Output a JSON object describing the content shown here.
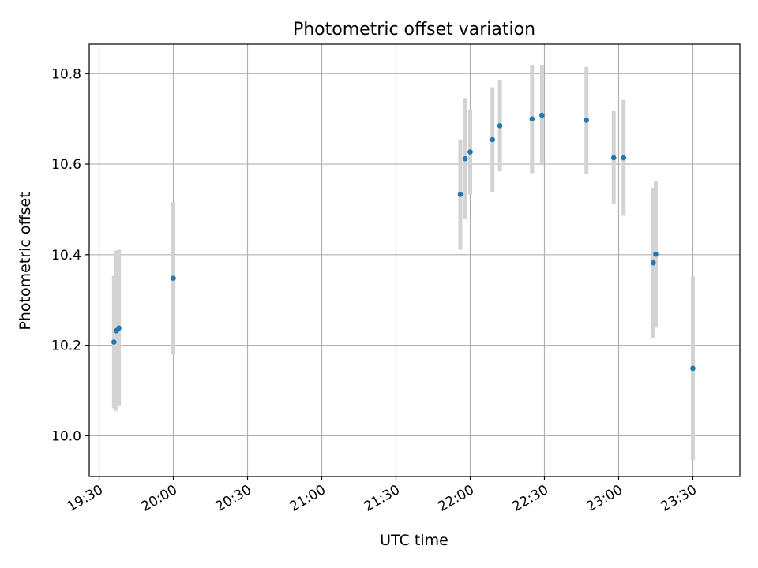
{
  "chart_data": {
    "type": "scatter",
    "title": "Photometric offset variation",
    "xlabel": "UTC time",
    "ylabel": "Photometric offset",
    "grid": true,
    "xlim": [
      "19:26",
      "23:49"
    ],
    "ylim": [
      9.91,
      10.865
    ],
    "x_ticks": [
      "19:30",
      "20:00",
      "20:30",
      "21:00",
      "21:30",
      "22:00",
      "22:30",
      "23:00",
      "23:30"
    ],
    "y_ticks": [
      "10.0",
      "10.2",
      "10.4",
      "10.6",
      "10.8"
    ],
    "colors": {
      "point": "#1f77b4",
      "errorbar": "#d3d3d3",
      "grid": "#b0b0b0"
    },
    "series": [
      {
        "points": [
          {
            "x": "19:36",
            "y": 10.207,
            "err": 0.146
          },
          {
            "x": "19:37",
            "y": 10.232,
            "err": 0.177
          },
          {
            "x": "19:38",
            "y": 10.238,
            "err": 0.173
          },
          {
            "x": "20:00",
            "y": 10.348,
            "err": 0.168
          },
          {
            "x": "21:56",
            "y": 10.533,
            "err": 0.122
          },
          {
            "x": "21:58",
            "y": 10.612,
            "err": 0.134
          },
          {
            "x": "22:00",
            "y": 10.627,
            "err": 0.094
          },
          {
            "x": "22:09",
            "y": 10.654,
            "err": 0.116
          },
          {
            "x": "22:12",
            "y": 10.685,
            "err": 0.101
          },
          {
            "x": "22:25",
            "y": 10.7,
            "err": 0.12
          },
          {
            "x": "22:29",
            "y": 10.708,
            "err": 0.11
          },
          {
            "x": "22:47",
            "y": 10.697,
            "err": 0.118
          },
          {
            "x": "22:58",
            "y": 10.614,
            "err": 0.103
          },
          {
            "x": "23:02",
            "y": 10.614,
            "err": 0.128
          },
          {
            "x": "23:14",
            "y": 10.382,
            "err": 0.166
          },
          {
            "x": "23:15",
            "y": 10.401,
            "err": 0.162
          },
          {
            "x": "23:30",
            "y": 10.149,
            "err": 0.203
          }
        ]
      }
    ]
  }
}
